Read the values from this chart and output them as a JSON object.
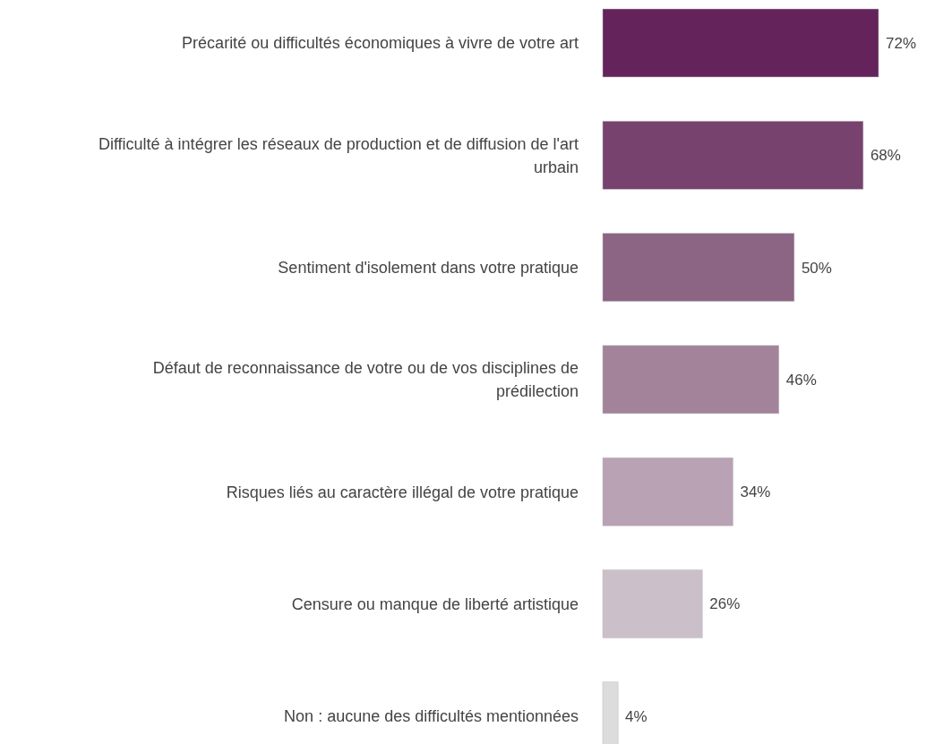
{
  "chart_data": {
    "type": "bar",
    "orientation": "horizontal",
    "categories": [
      "Précarité ou difficultés économiques à vivre de votre art",
      "Difficulté à intégrer les réseaux de production et de diffusion de l'art urbain",
      "Sentiment d'isolement dans votre pratique",
      "Défaut de reconnaissance de votre ou de vos disciplines de prédilection",
      "Risques liés au caractère illégal de votre pratique",
      "Censure ou manque de liberté artistique",
      "Non : aucune des difficultés mentionnées"
    ],
    "values": [
      72,
      68,
      50,
      46,
      34,
      26,
      4
    ],
    "value_labels": [
      "72%",
      "68%",
      "50%",
      "46%",
      "34%",
      "26%",
      "4%"
    ],
    "colors": [
      "#64235a",
      "#77426e",
      "#8d6584",
      "#a38399",
      "#b8a2b4",
      "#cbc0ca",
      "#dcdcdc"
    ]
  }
}
